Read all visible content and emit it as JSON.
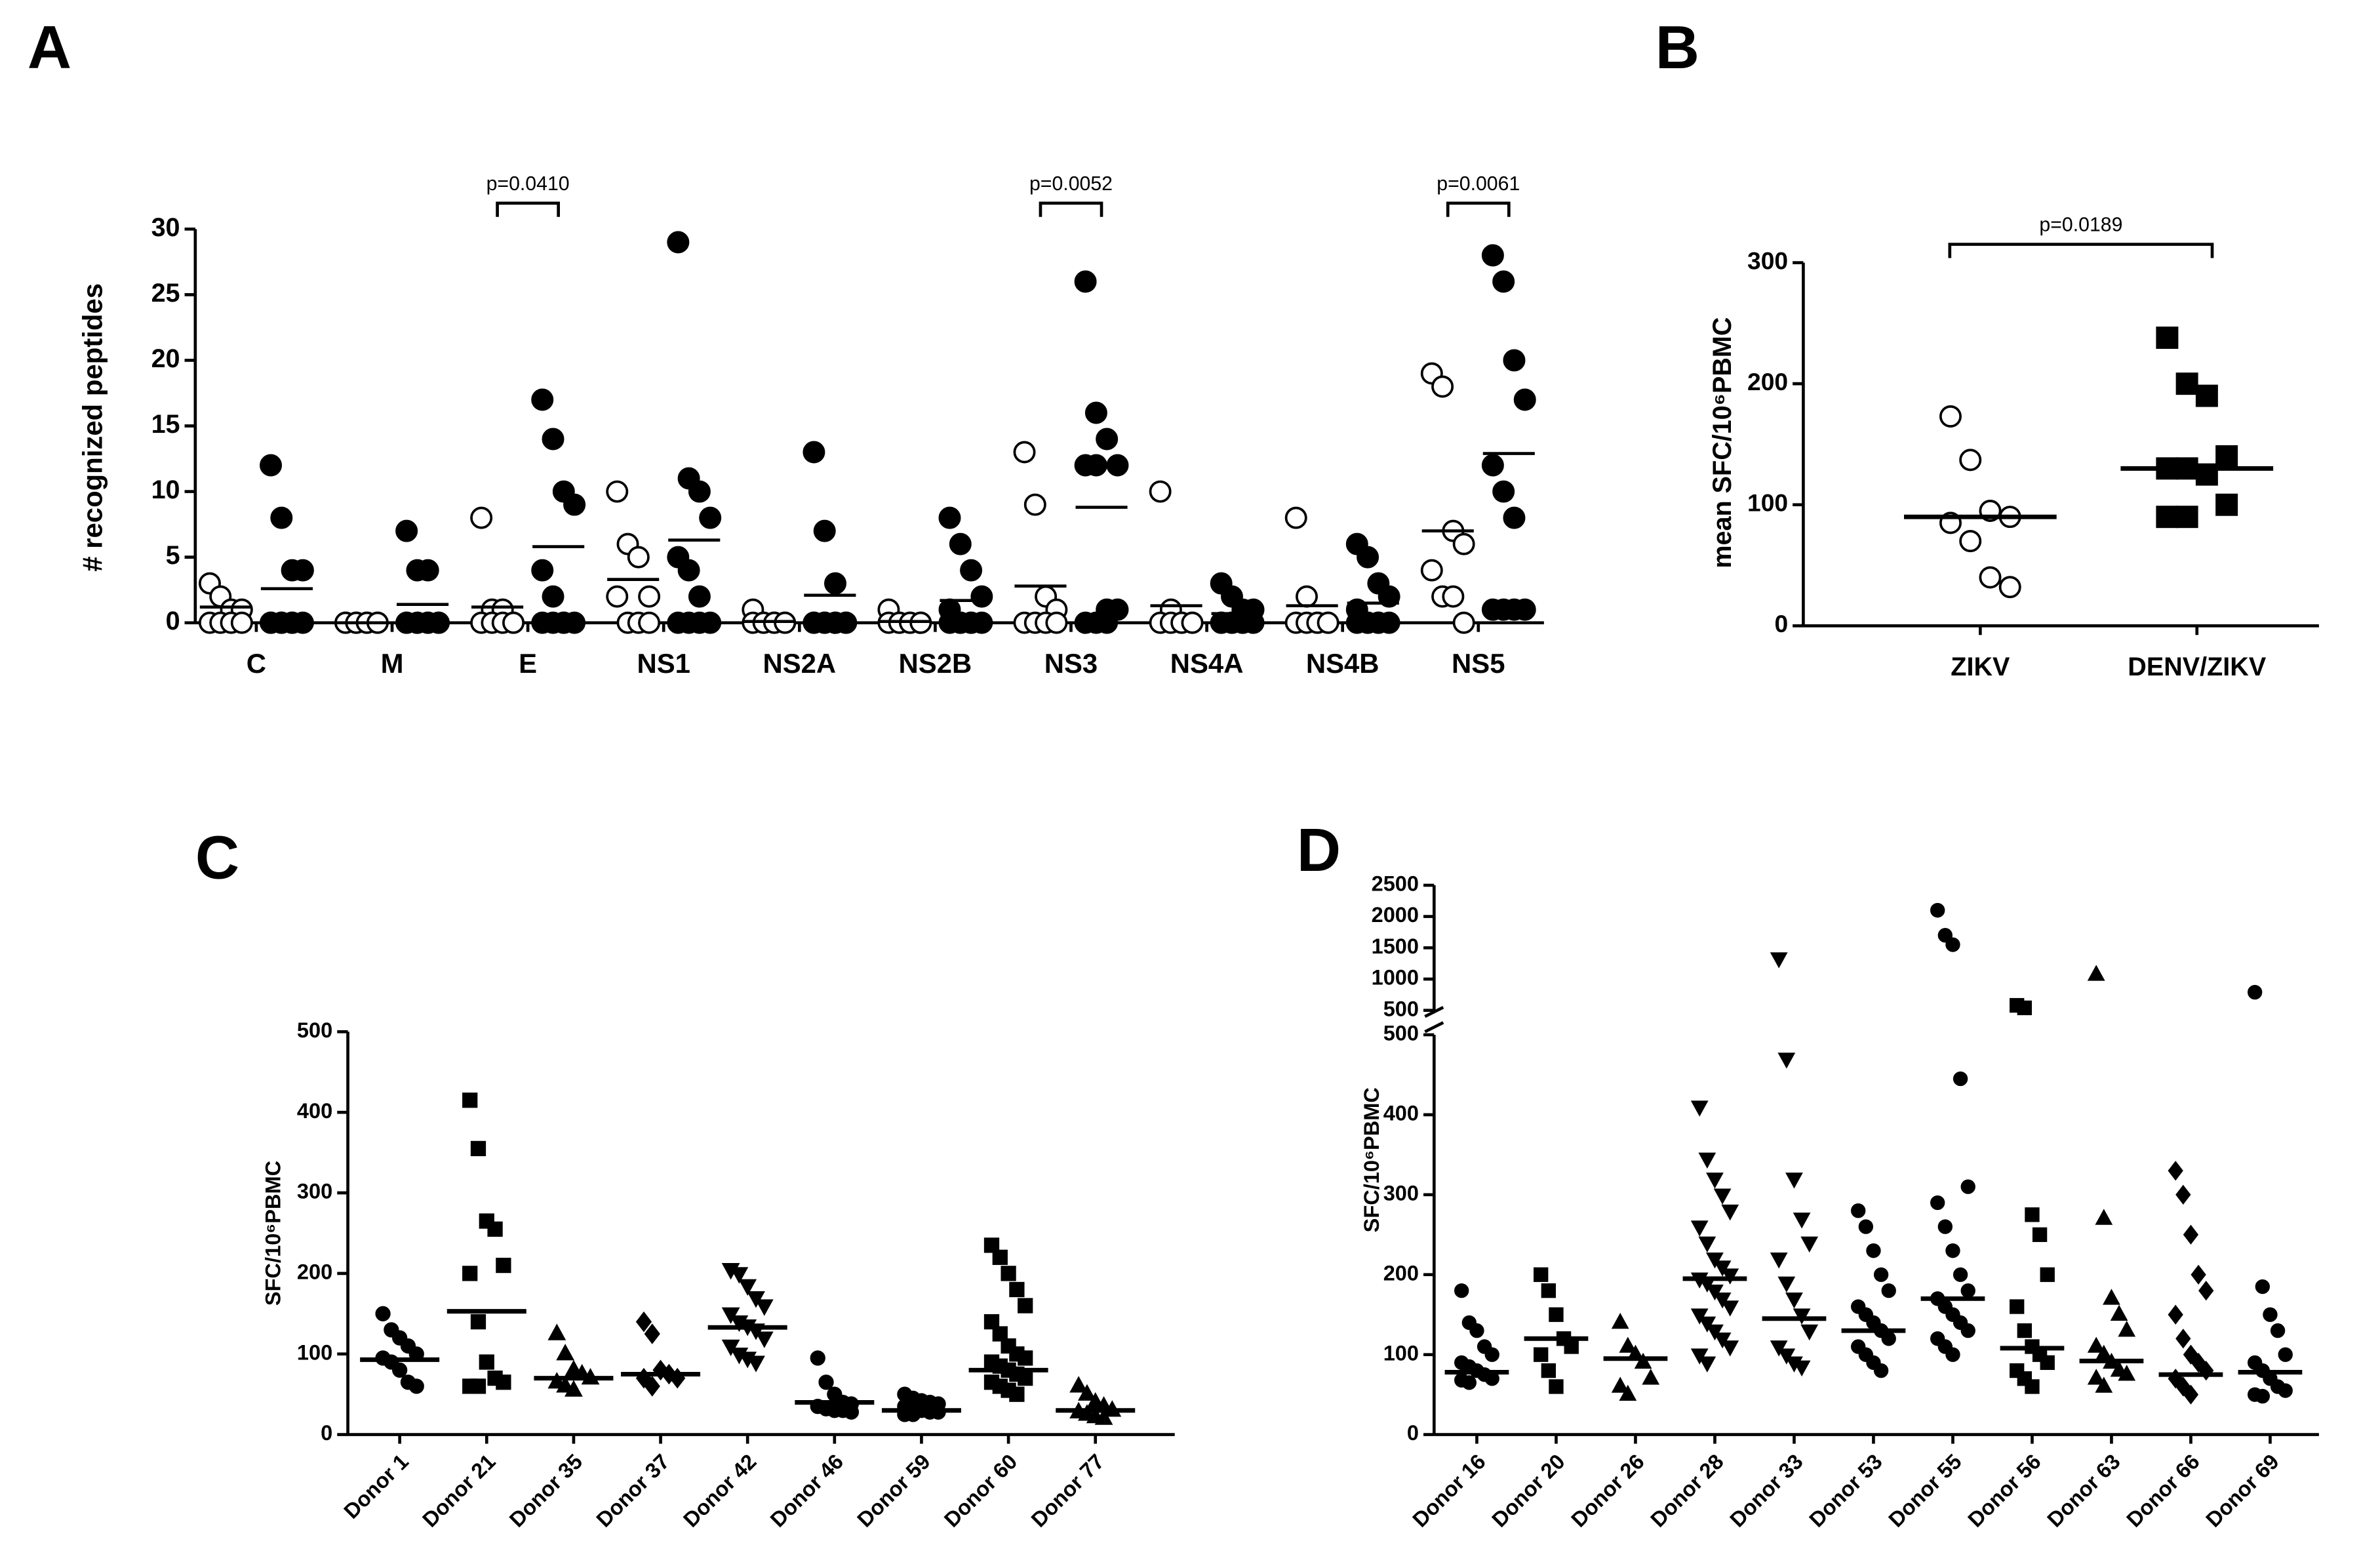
{
  "chart_data": [
    {
      "type": "dot",
      "title": "A",
      "ylabel": "# recognized peptides",
      "categories": [
        "C",
        "M",
        "E",
        "NS1",
        "NS2A",
        "NS2B",
        "NS3",
        "NS4A",
        "NS4B",
        "NS5"
      ],
      "series": [
        {
          "marker": "open",
          "color": "#000000",
          "values": [
            [
              3,
              2,
              1,
              1,
              0,
              0,
              0,
              0
            ],
            [
              0,
              0,
              0,
              0,
              0,
              0,
              0,
              0
            ],
            [
              8,
              1,
              1,
              0,
              0,
              0,
              0,
              0
            ],
            [
              10,
              6,
              5,
              2,
              2,
              0,
              0,
              0
            ],
            [
              1,
              0,
              0,
              0,
              0,
              0,
              0,
              0
            ],
            [
              1,
              0,
              0,
              0,
              0,
              0,
              0,
              0
            ],
            [
              13,
              9,
              2,
              1,
              0,
              0,
              0,
              0
            ],
            [
              10,
              1,
              0,
              0,
              0,
              0,
              0,
              0
            ],
            [
              8,
              2,
              0,
              0,
              0,
              0,
              0,
              0
            ],
            [
              19,
              18,
              7,
              6,
              4,
              2,
              2,
              0
            ]
          ],
          "means": [
            1.2,
            0,
            1.2,
            3.3,
            0.1,
            0.1,
            2.8,
            1.3,
            1.3,
            7
          ]
        },
        {
          "marker": "filled",
          "color": "#000000",
          "values": [
            [
              12,
              8,
              4,
              4,
              0,
              0,
              0,
              0,
              0,
              0,
              0
            ],
            [
              7,
              4,
              4,
              0,
              0,
              0,
              0,
              0,
              0,
              0,
              0
            ],
            [
              17,
              14,
              10,
              9,
              4,
              2,
              0,
              0,
              0,
              0,
              0
            ],
            [
              29,
              11,
              10,
              8,
              5,
              4,
              2,
              0,
              0,
              0,
              0
            ],
            [
              13,
              7,
              3,
              0,
              0,
              0,
              0,
              0,
              0,
              0,
              0
            ],
            [
              8,
              6,
              4,
              2,
              1,
              0,
              0,
              0,
              0,
              0,
              0
            ],
            [
              26,
              16,
              14,
              12,
              12,
              12,
              1,
              1,
              0,
              0,
              0
            ],
            [
              3,
              2,
              1,
              1,
              0,
              0,
              0,
              0,
              0,
              0,
              0
            ],
            [
              6,
              5,
              3,
              2,
              1,
              0,
              0,
              0,
              0,
              0,
              0
            ],
            [
              28,
              26,
              20,
              17,
              12,
              10,
              8,
              1,
              1,
              1,
              1
            ]
          ],
          "means": [
            2.6,
            1.4,
            5.8,
            6.3,
            2.1,
            1.7,
            8.8,
            0.7,
            1.5,
            12.9
          ]
        }
      ],
      "ylim": [
        0,
        30
      ],
      "yticks": [
        0,
        5,
        10,
        15,
        20,
        25,
        30
      ],
      "annotations": [
        {
          "text": "p=0.0410",
          "category": 2
        },
        {
          "text": "p=0.0052",
          "category": 6
        },
        {
          "text": "p=0.0061",
          "category": 9
        }
      ]
    },
    {
      "type": "dot",
      "title": "B",
      "ylabel": "mean SFC/10⁶PBMC",
      "categories": [
        "ZIKV",
        "DENV/ZIKV"
      ],
      "markers": [
        "open-circle",
        "square"
      ],
      "values": [
        [
          173,
          137,
          95,
          90,
          85,
          70,
          40,
          32
        ],
        [
          238,
          200,
          190,
          140,
          130,
          130,
          125,
          100,
          90,
          90
        ]
      ],
      "medians": [
        90,
        130
      ],
      "ylim": [
        0,
        300
      ],
      "yticks": [
        0,
        100,
        200,
        300
      ],
      "annotations": [
        {
          "text": "p=0.0189"
        }
      ]
    },
    {
      "type": "dot",
      "title": "C",
      "ylabel": "SFC/10⁶PBMC",
      "categories": [
        "Donor 1",
        "Donor 21",
        "Donor 35",
        "Donor 37",
        "Donor 42",
        "Donor 46",
        "Donor 59",
        "Donor 60",
        "Donor 77"
      ],
      "markers": [
        "circle",
        "square",
        "triangle",
        "diamond",
        "triangle-down",
        "circle",
        "circle",
        "square",
        "triangle"
      ],
      "values": [
        [
          150,
          130,
          120,
          110,
          100,
          95,
          90,
          80,
          65,
          60
        ],
        [
          415,
          355,
          265,
          255,
          210,
          200,
          140,
          90,
          70,
          65,
          60,
          60
        ],
        [
          125,
          100,
          80,
          75,
          70,
          65,
          60,
          55
        ],
        [
          140,
          125,
          80,
          75,
          70,
          70,
          60
        ],
        [
          205,
          200,
          185,
          170,
          160,
          150,
          140,
          135,
          130,
          120,
          110,
          100,
          95,
          90
        ],
        [
          95,
          65,
          50,
          40,
          38,
          35,
          32,
          30,
          30,
          28
        ],
        [
          50,
          45,
          42,
          40,
          38,
          35,
          32,
          30,
          28,
          28,
          25,
          25
        ],
        [
          235,
          220,
          200,
          180,
          160,
          140,
          125,
          110,
          100,
          95,
          90,
          85,
          80,
          75,
          70,
          65,
          60,
          55,
          50
        ],
        [
          60,
          50,
          40,
          35,
          30,
          28,
          25,
          22,
          20
        ]
      ],
      "medians": [
        93,
        153,
        70,
        75,
        133,
        40,
        30,
        80,
        30
      ],
      "ylim": [
        0,
        500
      ],
      "yticks": [
        0,
        100,
        200,
        300,
        400,
        500
      ]
    },
    {
      "type": "dot",
      "title": "D",
      "ylabel": "SFC/10⁶PBMC",
      "categories": [
        "Donor 16",
        "Donor 20",
        "Donor 26",
        "Donor 28",
        "Donor 33",
        "Donor 53",
        "Donor 55",
        "Donor 56",
        "Donor 63",
        "Donor 66",
        "Donor 69"
      ],
      "markers": [
        "circle",
        "square",
        "triangle",
        "triangle-down",
        "triangle-down",
        "circle",
        "circle",
        "square",
        "triangle",
        "diamond",
        "circle"
      ],
      "values": [
        [
          180,
          140,
          130,
          110,
          100,
          90,
          85,
          80,
          75,
          70,
          68,
          65
        ],
        [
          200,
          180,
          150,
          120,
          110,
          100,
          80,
          60
        ],
        [
          140,
          110,
          100,
          90,
          70,
          60,
          50
        ],
        [
          410,
          345,
          320,
          300,
          280,
          260,
          240,
          220,
          210,
          200,
          195,
          190,
          180,
          170,
          160,
          150,
          140,
          130,
          120,
          110,
          100,
          90
        ],
        [
          1330,
          470,
          320,
          270,
          240,
          220,
          190,
          170,
          150,
          130,
          110,
          100,
          90,
          85
        ],
        [
          280,
          260,
          230,
          200,
          180,
          160,
          150,
          140,
          130,
          120,
          110,
          100,
          90,
          80
        ],
        [
          2100,
          1700,
          1550,
          445,
          310,
          290,
          260,
          230,
          200,
          180,
          170,
          160,
          150,
          140,
          130,
          120,
          110,
          100
        ],
        [
          580,
          540,
          275,
          250,
          200,
          160,
          130,
          110,
          100,
          90,
          80,
          70,
          60
        ],
        [
          1070,
          270,
          170,
          150,
          130,
          110,
          100,
          90,
          80,
          75,
          70,
          60
        ],
        [
          330,
          300,
          250,
          200,
          180,
          150,
          120,
          100,
          90,
          80,
          70,
          60,
          50
        ],
        [
          790,
          185,
          150,
          130,
          100,
          90,
          80,
          70,
          60,
          55,
          50,
          48
        ]
      ],
      "medians": [
        78,
        120,
        95,
        195,
        145,
        130,
        170,
        108,
        92,
        75,
        78
      ],
      "ylim": [
        0,
        500
      ],
      "yticks": [
        0,
        100,
        200,
        300,
        400,
        500
      ],
      "y_upper_lim": [
        500,
        2500
      ],
      "y_upper_ticks": [
        500,
        1000,
        1500,
        2000,
        2500
      ]
    }
  ]
}
